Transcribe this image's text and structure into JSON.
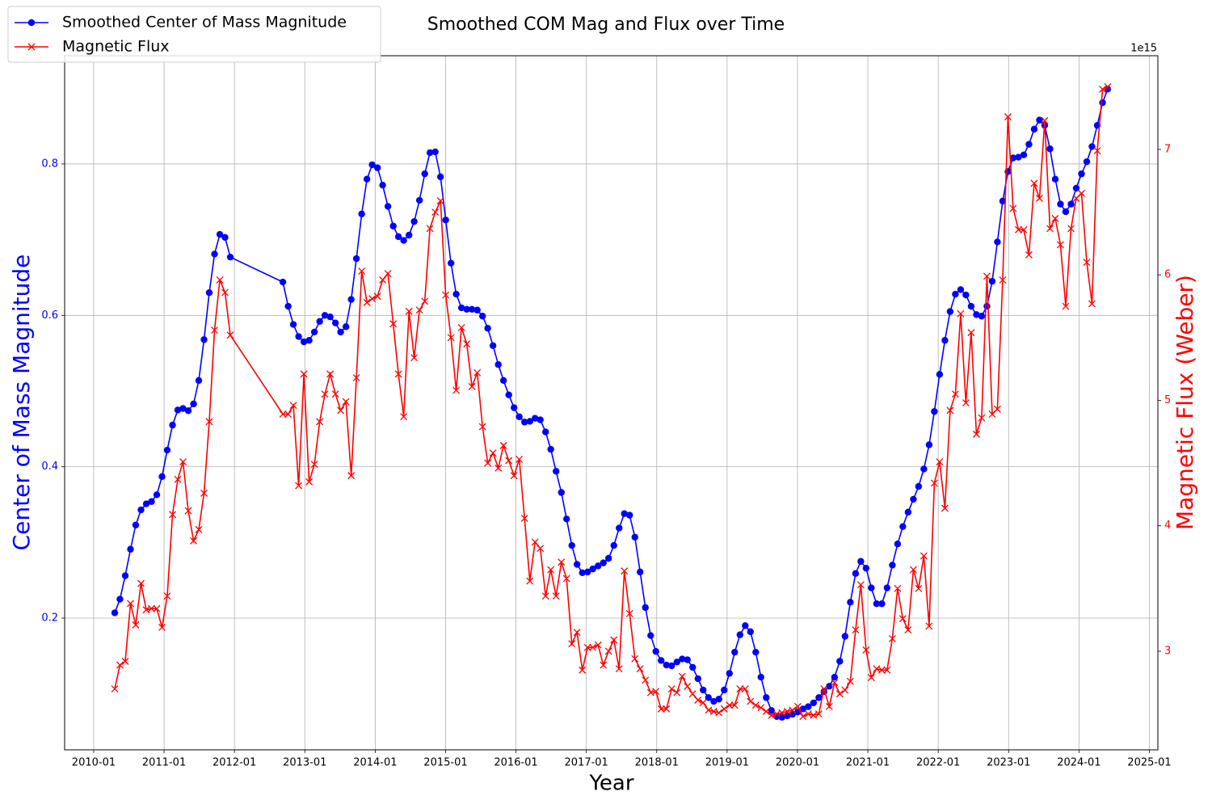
{
  "chart_data": {
    "type": "line",
    "title": "Smoothed COM Mag and Flux over Time",
    "x_label": "Year",
    "y_label": "Center of Mass Magnitude",
    "y2_label": "Magnetic Flux (Weber)",
    "y2_offset_label": "1e15",
    "legend": "upper left",
    "grid": true,
    "xlim": [
      2009.587,
      2025.121
    ],
    "xticks": [
      {
        "value": 2010,
        "label": "2010-01"
      },
      {
        "value": 2011,
        "label": "2011-01"
      },
      {
        "value": 2012,
        "label": "2012-01"
      },
      {
        "value": 2013,
        "label": "2013-01"
      },
      {
        "value": 2014,
        "label": "2014-01"
      },
      {
        "value": 2015,
        "label": "2015-01"
      },
      {
        "value": 2016,
        "label": "2016-01"
      },
      {
        "value": 2017,
        "label": "2017-01"
      },
      {
        "value": 2018,
        "label": "2018-01"
      },
      {
        "value": 2019,
        "label": "2019-01"
      },
      {
        "value": 2020,
        "label": "2020-01"
      },
      {
        "value": 2021,
        "label": "2021-01"
      },
      {
        "value": 2022,
        "label": "2022-01"
      },
      {
        "value": 2023,
        "label": "2023-01"
      },
      {
        "value": 2024,
        "label": "2024-01"
      },
      {
        "value": 2025,
        "label": "2025-01"
      }
    ],
    "ylim": [
      0.026,
      0.943
    ],
    "yticks": [
      0.2,
      0.4,
      0.6,
      0.8
    ],
    "y2lim": [
      2.214,
      7.747
    ],
    "y2ticks": [
      3,
      4,
      5,
      6,
      7
    ],
    "x": [
      2010.299,
      2010.373,
      2010.448,
      2010.523,
      2010.597,
      2010.672,
      2010.747,
      2010.821,
      2010.896,
      2010.971,
      2011.045,
      2011.12,
      2011.195,
      2011.269,
      2011.344,
      2011.419,
      2011.493,
      2011.568,
      2011.642,
      2011.717,
      2011.792,
      2011.866,
      2011.941,
      2012.688,
      2012.763,
      2012.837,
      2012.912,
      2012.987,
      2013.061,
      2013.136,
      2013.211,
      2013.285,
      2013.36,
      2013.435,
      2013.509,
      2013.584,
      2013.659,
      2013.733,
      2013.808,
      2013.883,
      2013.957,
      2014.032,
      2014.106,
      2014.181,
      2014.256,
      2014.33,
      2014.405,
      2014.48,
      2014.554,
      2014.629,
      2014.704,
      2014.778,
      2014.853,
      2014.928,
      2015.002,
      2015.077,
      2015.151,
      2015.226,
      2015.301,
      2015.375,
      2015.45,
      2015.525,
      2015.599,
      2015.674,
      2015.749,
      2015.823,
      2015.898,
      2015.973,
      2016.047,
      2016.122,
      2016.197,
      2016.271,
      2016.346,
      2016.421,
      2016.495,
      2016.57,
      2016.645,
      2016.719,
      2016.794,
      2016.868,
      2016.943,
      2017.018,
      2017.092,
      2017.167,
      2017.242,
      2017.316,
      2017.391,
      2017.466,
      2017.54,
      2017.615,
      2017.69,
      2017.764,
      2017.839,
      2017.914,
      2017.988,
      2018.063,
      2018.138,
      2018.212,
      2018.287,
      2018.362,
      2018.436,
      2018.511,
      2018.586,
      2018.66,
      2018.735,
      2018.81,
      2018.884,
      2018.959,
      2019.034,
      2019.108,
      2019.183,
      2019.258,
      2019.332,
      2019.407,
      2019.481,
      2019.556,
      2019.631,
      2019.705,
      2019.78,
      2019.855,
      2019.929,
      2020.004,
      2020.079,
      2020.153,
      2020.228,
      2020.303,
      2020.377,
      2020.452,
      2020.527,
      2020.601,
      2020.676,
      2020.751,
      2020.826,
      2020.9,
      2020.975,
      2021.049,
      2021.124,
      2021.199,
      2021.273,
      2021.348,
      2021.423,
      2021.497,
      2021.572,
      2021.647,
      2021.721,
      2021.796,
      2021.871,
      2021.945,
      2022.02,
      2022.095,
      2022.169,
      2022.244,
      2022.319,
      2022.393,
      2022.468,
      2022.543,
      2022.617,
      2022.692,
      2022.767,
      2022.841,
      2022.916,
      2022.991,
      2023.065,
      2023.14,
      2023.215,
      2023.289,
      2023.364,
      2023.439,
      2023.513,
      2023.588,
      2023.663,
      2023.737,
      2023.812,
      2023.887,
      2023.961,
      2024.036,
      2024.111,
      2024.185,
      2024.26,
      2024.335,
      2024.409
    ],
    "series": [
      {
        "name": "Smoothed Center of Mass Magnitude",
        "color": "#0000ff",
        "marker": "o",
        "values": [
          0.207,
          0.225,
          0.256,
          0.291,
          0.323,
          0.343,
          0.351,
          0.354,
          0.363,
          0.387,
          0.422,
          0.455,
          0.475,
          0.477,
          0.474,
          0.483,
          0.514,
          0.568,
          0.63,
          0.681,
          0.707,
          0.703,
          0.677,
          0.644,
          0.612,
          0.588,
          0.572,
          0.565,
          0.567,
          0.578,
          0.592,
          0.6,
          0.598,
          0.59,
          0.578,
          0.585,
          0.621,
          0.675,
          0.734,
          0.78,
          0.799,
          0.795,
          0.772,
          0.744,
          0.718,
          0.704,
          0.699,
          0.706,
          0.724,
          0.752,
          0.787,
          0.815,
          0.816,
          0.783,
          0.726,
          0.669,
          0.628,
          0.61,
          0.608,
          0.608,
          0.607,
          0.599,
          0.583,
          0.56,
          0.535,
          0.514,
          0.495,
          0.478,
          0.466,
          0.459,
          0.46,
          0.464,
          0.462,
          0.446,
          0.423,
          0.394,
          0.366,
          0.331,
          0.296,
          0.271,
          0.26,
          0.261,
          0.265,
          0.269,
          0.273,
          0.279,
          0.296,
          0.319,
          0.338,
          0.336,
          0.307,
          0.261,
          0.214,
          0.177,
          0.156,
          0.144,
          0.138,
          0.137,
          0.142,
          0.146,
          0.145,
          0.135,
          0.12,
          0.105,
          0.095,
          0.09,
          0.093,
          0.105,
          0.127,
          0.155,
          0.178,
          0.19,
          0.182,
          0.155,
          0.122,
          0.095,
          0.078,
          0.07,
          0.069,
          0.071,
          0.073,
          0.076,
          0.08,
          0.083,
          0.088,
          0.095,
          0.103,
          0.11,
          0.122,
          0.143,
          0.176,
          0.221,
          0.259,
          0.275,
          0.266,
          0.24,
          0.219,
          0.219,
          0.24,
          0.27,
          0.298,
          0.321,
          0.34,
          0.357,
          0.374,
          0.397,
          0.429,
          0.473,
          0.522,
          0.567,
          0.605,
          0.628,
          0.634,
          0.627,
          0.612,
          0.601,
          0.599,
          0.612,
          0.645,
          0.697,
          0.751,
          0.79,
          0.808,
          0.809,
          0.812,
          0.826,
          0.846,
          0.858,
          0.851,
          0.82,
          0.78,
          0.747,
          0.737,
          0.747,
          0.768,
          0.787,
          0.803,
          0.823,
          0.851,
          0.881,
          0.899
        ]
      },
      {
        "name": "Magnetic Flux",
        "color": "#ff0000",
        "marker": "x",
        "axis": "y2",
        "values": [
          2.7,
          2.89,
          2.92,
          3.38,
          3.21,
          3.54,
          3.33,
          3.34,
          3.34,
          3.19,
          3.44,
          4.09,
          4.37,
          4.51,
          4.12,
          3.88,
          3.97,
          4.26,
          4.83,
          5.56,
          5.96,
          5.86,
          5.52,
          4.89,
          4.89,
          4.96,
          4.32,
          5.21,
          4.35,
          4.49,
          4.83,
          5.05,
          5.21,
          5.05,
          4.92,
          4.99,
          4.4,
          5.18,
          6.03,
          5.78,
          5.81,
          5.83,
          5.96,
          6.01,
          5.61,
          5.21,
          4.87,
          5.71,
          5.34,
          5.72,
          5.79,
          6.37,
          6.5,
          6.59,
          5.84,
          5.5,
          5.08,
          5.58,
          5.45,
          5.11,
          5.22,
          4.79,
          4.5,
          4.58,
          4.46,
          4.64,
          4.52,
          4.4,
          4.53,
          4.06,
          3.56,
          3.87,
          3.82,
          3.44,
          3.65,
          3.44,
          3.71,
          3.58,
          3.06,
          3.15,
          2.85,
          3.03,
          3.03,
          3.05,
          2.89,
          3.0,
          3.09,
          2.86,
          3.64,
          3.3,
          2.94,
          2.86,
          2.77,
          2.67,
          2.68,
          2.54,
          2.54,
          2.7,
          2.67,
          2.8,
          2.72,
          2.66,
          2.61,
          2.59,
          2.53,
          2.52,
          2.51,
          2.54,
          2.57,
          2.57,
          2.7,
          2.7,
          2.6,
          2.57,
          2.55,
          2.52,
          2.49,
          2.5,
          2.51,
          2.52,
          2.53,
          2.56,
          2.48,
          2.5,
          2.49,
          2.5,
          2.7,
          2.56,
          2.75,
          2.66,
          2.69,
          2.76,
          3.17,
          3.53,
          3.01,
          2.79,
          2.86,
          2.85,
          2.85,
          3.1,
          3.5,
          3.26,
          3.17,
          3.65,
          3.5,
          3.76,
          3.2,
          4.34,
          4.51,
          4.14,
          4.92,
          5.05,
          5.69,
          4.98,
          5.54,
          4.73,
          4.86,
          5.99,
          4.89,
          4.93,
          5.96,
          7.26,
          6.53,
          6.36,
          6.36,
          6.16,
          6.73,
          6.61,
          7.23,
          6.37,
          6.45,
          6.24,
          5.75,
          6.37,
          6.61,
          6.65,
          6.1,
          5.77,
          6.99,
          7.48,
          7.5
        ]
      }
    ]
  }
}
